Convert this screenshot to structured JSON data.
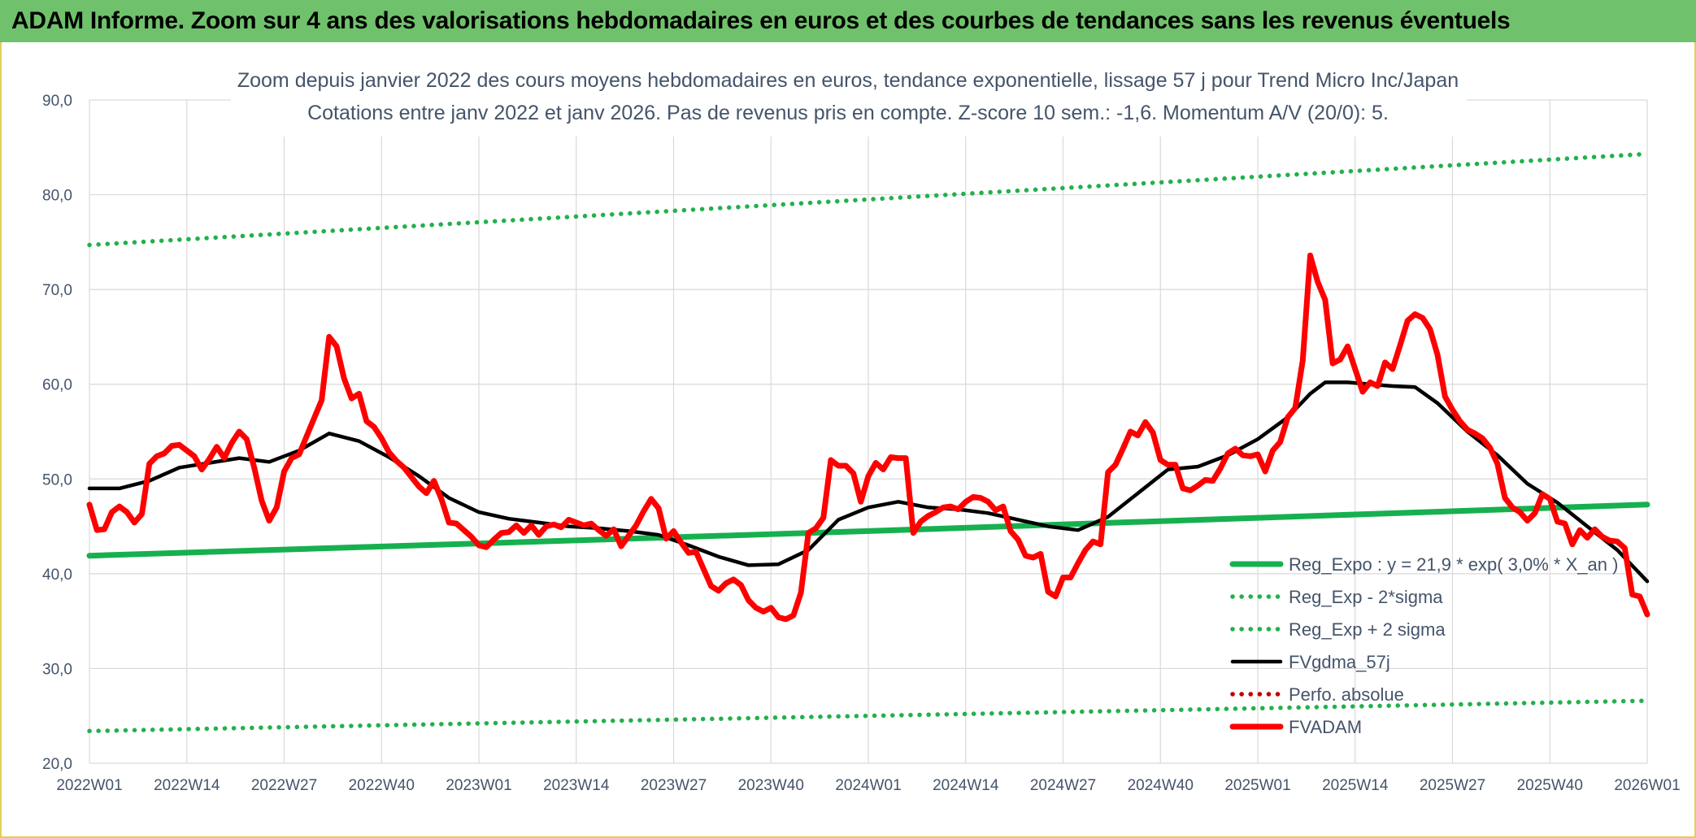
{
  "banner": {
    "title": "ADAM Informe. Zoom sur 4 ans des valorisations hebdomadaires en euros et des courbes de tendances sans les revenus éventuels"
  },
  "colors": {
    "banner_bg": "#6fc26b",
    "trend_green": "#17b04f",
    "sigma_green": "#22b14c",
    "average_black": "#000000",
    "price_red": "#ff0000",
    "perf_red": "#c00000",
    "grid": "#d9d9d9",
    "text": "#44546a"
  },
  "chart_data": {
    "type": "line",
    "title": "Zoom depuis janvier 2022 des cours moyens hebdomadaires en euros, tendance exponentielle, lissage 57 j pour Trend Micro Inc/Japan",
    "subtitle": "Cotations entre janv 2022 et janv 2026. Pas de revenus pris en compte. Z-score 10 sem.: -1,6. Momentum A/V (20/0): 5.",
    "xlabel": "",
    "ylabel": "",
    "ylim": [
      20,
      90
    ],
    "yticks": [
      "20,0",
      "30,0",
      "40,0",
      "50,0",
      "60,0",
      "70,0",
      "80,0",
      "90,0"
    ],
    "xlim": [
      0,
      208
    ],
    "xticks": [
      {
        "x": 0,
        "label": "2022W01"
      },
      {
        "x": 13,
        "label": "2022W14"
      },
      {
        "x": 26,
        "label": "2022W27"
      },
      {
        "x": 39,
        "label": "2022W40"
      },
      {
        "x": 52,
        "label": "2023W01"
      },
      {
        "x": 65,
        "label": "2023W14"
      },
      {
        "x": 78,
        "label": "2023W27"
      },
      {
        "x": 91,
        "label": "2023W40"
      },
      {
        "x": 104,
        "label": "2024W01"
      },
      {
        "x": 117,
        "label": "2024W14"
      },
      {
        "x": 130,
        "label": "2024W27"
      },
      {
        "x": 143,
        "label": "2024W40"
      },
      {
        "x": 156,
        "label": "2025W01"
      },
      {
        "x": 169,
        "label": "2025W14"
      },
      {
        "x": 182,
        "label": "2025W27"
      },
      {
        "x": 195,
        "label": "2025W40"
      },
      {
        "x": 208,
        "label": "2026W01"
      }
    ],
    "grid": true,
    "legend_position": "bottom-right",
    "series": [
      {
        "name": "Reg_Expo : y = 21,9 * exp( 3,0% *  X_an )",
        "style": "thick-solid",
        "color": "#17b04f",
        "points": [
          [
            0,
            41.9
          ],
          [
            52,
            43.2
          ],
          [
            104,
            44.5
          ],
          [
            156,
            45.9
          ],
          [
            208,
            47.3
          ]
        ]
      },
      {
        "name": "Reg_Exp - 2*sigma",
        "style": "dotted",
        "color": "#22b14c",
        "points": [
          [
            0,
            23.4
          ],
          [
            52,
            24.2
          ],
          [
            104,
            25.0
          ],
          [
            156,
            25.8
          ],
          [
            208,
            26.6
          ]
        ]
      },
      {
        "name": "Reg_Exp + 2 sigma",
        "style": "dotted",
        "color": "#22b14c",
        "points": [
          [
            0,
            74.7
          ],
          [
            52,
            77.1
          ],
          [
            104,
            79.5
          ],
          [
            156,
            81.9
          ],
          [
            208,
            84.3
          ]
        ]
      },
      {
        "name": "FVgdma_57j",
        "style": "solid",
        "color": "#000000",
        "points": [
          [
            0,
            49.0
          ],
          [
            4,
            49.0
          ],
          [
            8,
            49.8
          ],
          [
            12,
            51.2
          ],
          [
            16,
            51.7
          ],
          [
            20,
            52.2
          ],
          [
            24,
            51.8
          ],
          [
            28,
            53.0
          ],
          [
            32,
            54.8
          ],
          [
            36,
            54.0
          ],
          [
            40,
            52.3
          ],
          [
            44,
            50.3
          ],
          [
            48,
            48.0
          ],
          [
            52,
            46.5
          ],
          [
            56,
            45.8
          ],
          [
            60,
            45.4
          ],
          [
            64,
            45.0
          ],
          [
            68,
            44.8
          ],
          [
            72,
            44.5
          ],
          [
            76,
            44.1
          ],
          [
            80,
            43.0
          ],
          [
            84,
            41.8
          ],
          [
            88,
            40.9
          ],
          [
            92,
            41.0
          ],
          [
            96,
            42.5
          ],
          [
            100,
            45.7
          ],
          [
            104,
            47.0
          ],
          [
            108,
            47.6
          ],
          [
            112,
            47.0
          ],
          [
            116,
            46.8
          ],
          [
            120,
            46.4
          ],
          [
            124,
            45.7
          ],
          [
            128,
            45.0
          ],
          [
            132,
            44.6
          ],
          [
            136,
            46.0
          ],
          [
            140,
            48.5
          ],
          [
            144,
            51.0
          ],
          [
            148,
            51.3
          ],
          [
            152,
            52.5
          ],
          [
            156,
            54.2
          ],
          [
            160,
            56.5
          ],
          [
            163,
            59.0
          ],
          [
            165,
            60.2
          ],
          [
            168,
            60.2
          ],
          [
            171,
            60.0
          ],
          [
            174,
            59.8
          ],
          [
            177,
            59.7
          ],
          [
            180,
            58.0
          ],
          [
            184,
            55.0
          ],
          [
            188,
            52.5
          ],
          [
            192,
            49.5
          ],
          [
            196,
            47.5
          ],
          [
            200,
            45.0
          ],
          [
            204,
            42.5
          ],
          [
            208,
            39.2
          ]
        ]
      },
      {
        "name": "Perfo. absolue",
        "style": "dotted",
        "color": "#c00000",
        "points": []
      },
      {
        "name": "FVADAM",
        "style": "thick-solid",
        "color": "#ff0000",
        "points": [
          [
            0,
            47.3
          ],
          [
            1,
            44.6
          ],
          [
            2,
            44.7
          ],
          [
            3,
            46.5
          ],
          [
            4,
            47.1
          ],
          [
            5,
            46.5
          ],
          [
            6,
            45.4
          ],
          [
            7,
            46.3
          ],
          [
            8,
            51.6
          ],
          [
            9,
            52.4
          ],
          [
            10,
            52.7
          ],
          [
            11,
            53.5
          ],
          [
            12,
            53.6
          ],
          [
            13,
            53.0
          ],
          [
            14,
            52.4
          ],
          [
            15,
            51.0
          ],
          [
            16,
            52.1
          ],
          [
            17,
            53.4
          ],
          [
            18,
            52.2
          ],
          [
            19,
            53.8
          ],
          [
            20,
            55.0
          ],
          [
            21,
            54.2
          ],
          [
            22,
            51.2
          ],
          [
            23,
            47.7
          ],
          [
            24,
            45.6
          ],
          [
            25,
            47.0
          ],
          [
            26,
            50.8
          ],
          [
            27,
            52.2
          ],
          [
            28,
            52.6
          ],
          [
            29,
            54.5
          ],
          [
            30,
            56.4
          ],
          [
            31,
            58.3
          ],
          [
            32,
            65.0
          ],
          [
            33,
            64.0
          ],
          [
            34,
            60.6
          ],
          [
            35,
            58.5
          ],
          [
            36,
            59.0
          ],
          [
            37,
            56.1
          ],
          [
            38,
            55.5
          ],
          [
            39,
            54.3
          ],
          [
            40,
            52.8
          ],
          [
            41,
            51.9
          ],
          [
            42,
            51.2
          ],
          [
            43,
            50.2
          ],
          [
            44,
            49.2
          ],
          [
            45,
            48.5
          ],
          [
            46,
            49.8
          ],
          [
            47,
            47.9
          ],
          [
            48,
            45.4
          ],
          [
            49,
            45.3
          ],
          [
            50,
            44.6
          ],
          [
            51,
            43.9
          ],
          [
            52,
            43.0
          ],
          [
            53,
            42.8
          ],
          [
            54,
            43.6
          ],
          [
            55,
            44.3
          ],
          [
            56,
            44.4
          ],
          [
            57,
            45.1
          ],
          [
            58,
            44.3
          ],
          [
            59,
            45.1
          ],
          [
            60,
            44.1
          ],
          [
            61,
            45.0
          ],
          [
            62,
            45.2
          ],
          [
            63,
            44.9
          ],
          [
            64,
            45.7
          ],
          [
            65,
            45.4
          ],
          [
            66,
            45.1
          ],
          [
            67,
            45.3
          ],
          [
            68,
            44.6
          ],
          [
            69,
            44.0
          ],
          [
            70,
            44.7
          ],
          [
            71,
            42.9
          ],
          [
            72,
            44.0
          ],
          [
            73,
            45.1
          ],
          [
            74,
            46.6
          ],
          [
            75,
            47.9
          ],
          [
            76,
            46.9
          ],
          [
            77,
            43.7
          ],
          [
            78,
            44.5
          ],
          [
            79,
            43.3
          ],
          [
            80,
            42.2
          ],
          [
            81,
            42.3
          ],
          [
            82,
            40.5
          ],
          [
            83,
            38.7
          ],
          [
            84,
            38.2
          ],
          [
            85,
            39.0
          ],
          [
            86,
            39.4
          ],
          [
            87,
            38.8
          ],
          [
            88,
            37.2
          ],
          [
            89,
            36.4
          ],
          [
            90,
            36.0
          ],
          [
            91,
            36.4
          ],
          [
            92,
            35.4
          ],
          [
            93,
            35.2
          ],
          [
            94,
            35.6
          ],
          [
            95,
            38.0
          ],
          [
            96,
            44.3
          ],
          [
            97,
            44.8
          ],
          [
            98,
            45.9
          ],
          [
            99,
            52.0
          ],
          [
            100,
            51.4
          ],
          [
            101,
            51.4
          ],
          [
            102,
            50.6
          ],
          [
            103,
            47.6
          ],
          [
            104,
            50.3
          ],
          [
            105,
            51.7
          ],
          [
            106,
            51.0
          ],
          [
            107,
            52.3
          ],
          [
            108,
            52.2
          ],
          [
            109,
            52.2
          ],
          [
            110,
            44.3
          ],
          [
            111,
            45.5
          ],
          [
            112,
            46.1
          ],
          [
            113,
            46.5
          ],
          [
            114,
            47.0
          ],
          [
            115,
            47.1
          ],
          [
            116,
            46.8
          ],
          [
            117,
            47.6
          ],
          [
            118,
            48.1
          ],
          [
            119,
            48.0
          ],
          [
            120,
            47.6
          ],
          [
            121,
            46.7
          ],
          [
            122,
            47.1
          ],
          [
            123,
            44.5
          ],
          [
            124,
            43.6
          ],
          [
            125,
            41.9
          ],
          [
            126,
            41.7
          ],
          [
            127,
            42.1
          ],
          [
            128,
            38.1
          ],
          [
            129,
            37.6
          ],
          [
            130,
            39.6
          ],
          [
            131,
            39.6
          ],
          [
            132,
            41.1
          ],
          [
            133,
            42.5
          ],
          [
            134,
            43.4
          ],
          [
            135,
            43.1
          ],
          [
            136,
            50.7
          ],
          [
            137,
            51.5
          ],
          [
            138,
            53.2
          ],
          [
            139,
            55.0
          ],
          [
            140,
            54.6
          ],
          [
            141,
            56.0
          ],
          [
            142,
            54.9
          ],
          [
            143,
            52.0
          ],
          [
            144,
            51.5
          ],
          [
            145,
            51.5
          ],
          [
            146,
            49.0
          ],
          [
            147,
            48.8
          ],
          [
            148,
            49.3
          ],
          [
            149,
            49.9
          ],
          [
            150,
            49.8
          ],
          [
            151,
            51.1
          ],
          [
            152,
            52.7
          ],
          [
            153,
            53.2
          ],
          [
            154,
            52.5
          ],
          [
            155,
            52.4
          ],
          [
            156,
            52.6
          ],
          [
            157,
            50.8
          ],
          [
            158,
            53.0
          ],
          [
            159,
            53.9
          ],
          [
            160,
            56.5
          ],
          [
            161,
            57.5
          ],
          [
            162,
            62.5
          ],
          [
            163,
            73.6
          ],
          [
            164,
            70.8
          ],
          [
            165,
            68.9
          ],
          [
            166,
            62.2
          ],
          [
            167,
            62.6
          ],
          [
            168,
            64.0
          ],
          [
            169,
            61.6
          ],
          [
            170,
            59.2
          ],
          [
            171,
            60.2
          ],
          [
            172,
            59.8
          ],
          [
            173,
            62.3
          ],
          [
            174,
            61.6
          ],
          [
            175,
            64.1
          ],
          [
            176,
            66.7
          ],
          [
            177,
            67.4
          ],
          [
            178,
            67.0
          ],
          [
            179,
            65.8
          ],
          [
            180,
            63.1
          ],
          [
            181,
            58.7
          ],
          [
            182,
            57.3
          ],
          [
            183,
            56.1
          ],
          [
            184,
            55.2
          ],
          [
            185,
            54.8
          ],
          [
            186,
            54.3
          ],
          [
            187,
            53.3
          ],
          [
            188,
            51.6
          ],
          [
            189,
            48.0
          ],
          [
            190,
            47.0
          ],
          [
            191,
            46.5
          ],
          [
            192,
            45.6
          ],
          [
            193,
            46.4
          ],
          [
            194,
            48.4
          ],
          [
            195,
            47.9
          ],
          [
            196,
            45.5
          ],
          [
            197,
            45.3
          ],
          [
            198,
            43.1
          ],
          [
            199,
            44.6
          ],
          [
            200,
            43.8
          ],
          [
            201,
            44.7
          ],
          [
            202,
            43.9
          ],
          [
            203,
            43.5
          ],
          [
            204,
            43.4
          ],
          [
            205,
            42.7
          ],
          [
            206,
            37.8
          ],
          [
            207,
            37.6
          ],
          [
            208,
            35.7
          ]
        ]
      }
    ]
  }
}
